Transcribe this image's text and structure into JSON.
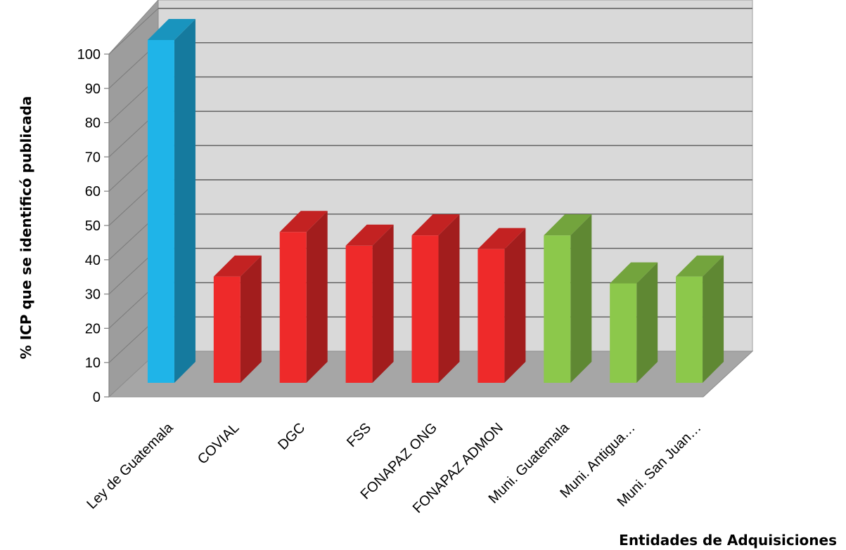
{
  "chart_data": {
    "type": "bar",
    "style": "3d-column",
    "categories": [
      "Ley de Guatemala",
      "COVIAL",
      "DGC",
      "FSS",
      "FONAPAZ ONG",
      "FONAPAZ ADMON",
      "Muni. Guatemala",
      "Muni. Antigua…",
      "Muni. San Juan…"
    ],
    "values": [
      100,
      31,
      44,
      40,
      43,
      39,
      43,
      29,
      31
    ],
    "bar_colors": [
      "#1fb4e8",
      "#ee2a2a",
      "#ee2a2a",
      "#ee2a2a",
      "#ee2a2a",
      "#ee2a2a",
      "#8cc84b",
      "#8cc84b",
      "#8cc84b"
    ],
    "title": "",
    "xlabel": "Entidades de Adquisiciones",
    "ylabel": "% ICP que se identificó publicada",
    "ylim": [
      0,
      100
    ],
    "yticks": [
      0,
      10,
      20,
      30,
      40,
      50,
      60,
      70,
      80,
      90,
      100
    ],
    "grid": true,
    "legend": "none",
    "wall_color": "#d9d9d9",
    "floor_color": "#a6a6a6"
  }
}
